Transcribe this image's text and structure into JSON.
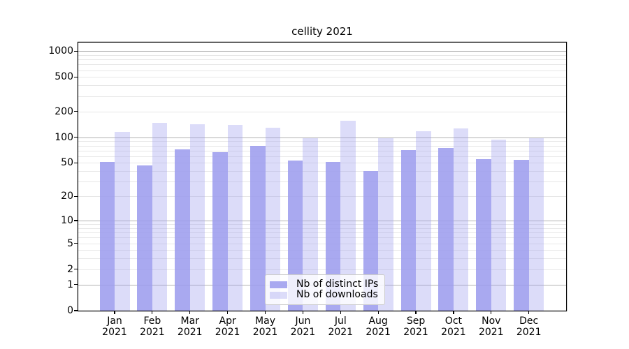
{
  "chart_data": {
    "type": "bar",
    "title": "cellity 2021",
    "categories": [
      "Jan 2021",
      "Feb 2021",
      "Mar 2021",
      "Apr 2021",
      "May 2021",
      "Jun 2021",
      "Jul 2021",
      "Aug 2021",
      "Sep 2021",
      "Oct 2021",
      "Nov 2021",
      "Dec 2021"
    ],
    "series": [
      {
        "name": "Nb of distinct IPs",
        "color": "rgba(154,154,237,0.85)",
        "values": [
          51,
          47,
          72,
          67,
          79,
          53,
          51,
          40,
          71,
          75,
          55,
          54
        ]
      },
      {
        "name": "Nb of downloads",
        "color": "rgba(154,154,237,0.35)",
        "values": [
          115,
          147,
          143,
          139,
          128,
          98,
          155,
          98,
          118,
          127,
          94,
          98
        ]
      }
    ],
    "yscale": "log1p",
    "yticks": [
      0,
      1,
      2,
      5,
      10,
      20,
      50,
      100,
      200,
      500,
      1000
    ],
    "ylim": [
      0,
      1260
    ],
    "xlabel": "",
    "ylabel": "",
    "grid": true,
    "legend_position": "lower center"
  },
  "colors": {
    "grid_major": "#b2b2b2",
    "grid_minor": "#e7e7e7",
    "axis": "#000000",
    "text": "#000000",
    "legend_border": "#cccccc",
    "legend_background": "rgba(255,255,255,0.8)"
  }
}
